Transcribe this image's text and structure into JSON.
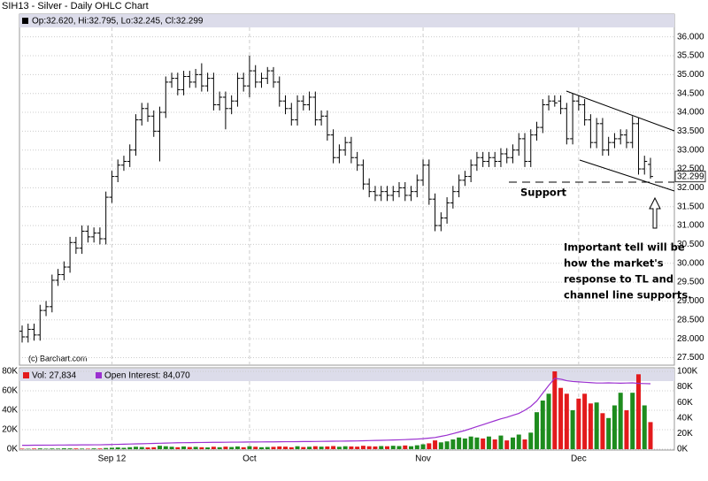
{
  "chart_data": [
    {
      "type": "ohlc",
      "title": "SIH13 - Silver - Daily OHLC Chart",
      "legend_text": "Op:32.620, Hi:32.795, Lo:32.245, Cl:32.299",
      "credit": "(c) Barchart.com",
      "color": "#000000",
      "open": [
        28.2,
        28.05,
        28.25,
        28.1,
        28.75,
        28.85,
        29.55,
        29.7,
        29.9,
        30.55,
        30.4,
        30.85,
        30.7,
        30.8,
        30.65,
        31.75,
        32.3,
        32.6,
        32.7,
        33.0,
        33.8,
        34.1,
        33.9,
        33.5,
        34.0,
        34.8,
        34.9,
        34.6,
        34.95,
        34.8,
        35.0,
        34.7,
        34.9,
        34.2,
        34.4,
        34.1,
        34.3,
        34.9,
        34.7,
        35.1,
        34.8,
        34.9,
        35.1,
        34.8,
        34.3,
        34.1,
        33.8,
        34.3,
        34.2,
        34.4,
        33.8,
        33.9,
        33.4,
        32.8,
        33.0,
        33.2,
        32.8,
        32.6,
        32.1,
        31.9,
        31.8,
        31.9,
        31.8,
        31.9,
        32.0,
        31.8,
        31.9,
        32.2,
        32.6,
        31.7,
        31.0,
        31.2,
        31.6,
        31.9,
        32.2,
        32.3,
        32.6,
        32.8,
        32.7,
        32.8,
        32.7,
        32.9,
        32.8,
        33.0,
        33.3,
        32.7,
        33.4,
        33.6,
        34.2,
        34.3,
        34.3,
        34.1,
        33.3,
        34.3,
        34.2,
        33.8,
        33.2,
        33.7,
        33.0,
        33.2,
        33.3,
        33.4,
        33.2,
        33.7,
        32.5,
        32.62
      ],
      "high": [
        28.35,
        28.4,
        28.4,
        28.9,
        29.0,
        29.7,
        29.85,
        30.05,
        30.7,
        30.7,
        31.0,
        31.0,
        30.95,
        30.95,
        31.9,
        32.45,
        32.75,
        32.85,
        33.15,
        33.95,
        34.25,
        34.25,
        34.05,
        34.15,
        34.95,
        35.05,
        35.05,
        35.1,
        35.1,
        35.15,
        35.3,
        35.05,
        35.05,
        34.55,
        34.55,
        34.45,
        35.05,
        35.05,
        35.5,
        35.25,
        35.05,
        35.2,
        35.2,
        34.95,
        34.45,
        34.25,
        34.45,
        34.45,
        34.55,
        34.55,
        34.05,
        34.05,
        33.55,
        33.15,
        33.35,
        33.35,
        32.95,
        32.75,
        32.25,
        32.05,
        32.05,
        32.05,
        32.05,
        32.15,
        32.15,
        32.05,
        32.35,
        32.75,
        32.75,
        31.85,
        31.35,
        31.75,
        32.05,
        32.35,
        32.45,
        32.75,
        32.95,
        32.95,
        32.95,
        32.95,
        33.05,
        33.05,
        33.15,
        33.45,
        33.45,
        33.55,
        33.75,
        34.35,
        34.45,
        34.45,
        34.45,
        34.25,
        34.5,
        34.45,
        34.35,
        33.95,
        33.85,
        33.85,
        33.35,
        33.45,
        33.55,
        33.55,
        33.9,
        33.85,
        32.85,
        32.795
      ],
      "low": [
        27.9,
        27.9,
        27.95,
        27.95,
        28.6,
        28.7,
        29.4,
        29.55,
        29.75,
        30.25,
        30.25,
        30.55,
        30.55,
        30.5,
        30.5,
        31.6,
        32.15,
        32.45,
        32.55,
        32.85,
        33.65,
        33.75,
        33.35,
        32.7,
        33.85,
        34.65,
        34.45,
        34.45,
        34.65,
        34.65,
        34.55,
        34.55,
        34.05,
        34.05,
        33.55,
        33.95,
        34.15,
        34.55,
        34.4,
        34.65,
        34.65,
        34.75,
        34.65,
        34.15,
        33.95,
        33.65,
        33.65,
        34.05,
        34.05,
        33.65,
        33.65,
        33.25,
        32.65,
        32.65,
        32.85,
        32.65,
        32.45,
        31.95,
        31.75,
        31.65,
        31.65,
        31.65,
        31.65,
        31.75,
        31.65,
        31.65,
        31.75,
        32.05,
        31.55,
        30.85,
        30.85,
        31.05,
        31.45,
        31.75,
        32.05,
        32.15,
        32.45,
        32.55,
        32.55,
        32.55,
        32.55,
        32.65,
        32.65,
        32.85,
        32.55,
        32.55,
        33.25,
        33.45,
        34.05,
        34.15,
        33.95,
        33.15,
        33.15,
        34.05,
        33.65,
        33.05,
        33.05,
        32.85,
        32.85,
        33.05,
        33.15,
        33.05,
        33.05,
        32.35,
        32.35,
        32.245
      ],
      "close": [
        28.05,
        28.25,
        28.1,
        28.75,
        28.85,
        29.55,
        29.7,
        29.9,
        30.55,
        30.4,
        30.85,
        30.7,
        30.8,
        30.65,
        31.75,
        32.3,
        32.6,
        32.7,
        33.0,
        33.8,
        34.1,
        33.9,
        33.5,
        34.0,
        34.8,
        34.9,
        34.6,
        34.95,
        34.8,
        35.0,
        34.7,
        34.9,
        34.2,
        34.4,
        34.1,
        34.3,
        34.9,
        34.7,
        35.1,
        34.8,
        34.9,
        35.1,
        34.8,
        34.3,
        34.1,
        33.8,
        34.3,
        34.2,
        34.4,
        33.8,
        33.9,
        33.4,
        32.8,
        33.0,
        33.2,
        32.8,
        32.6,
        32.1,
        31.9,
        31.8,
        31.9,
        31.8,
        31.9,
        32.0,
        31.8,
        31.9,
        32.2,
        32.6,
        31.7,
        31.0,
        31.2,
        31.6,
        31.9,
        32.2,
        32.3,
        32.6,
        32.8,
        32.7,
        32.8,
        32.7,
        32.9,
        32.8,
        33.0,
        33.3,
        32.7,
        33.4,
        33.6,
        34.2,
        34.3,
        34.25,
        34.1,
        33.3,
        34.3,
        34.2,
        33.8,
        33.2,
        33.7,
        33.0,
        33.2,
        33.3,
        33.4,
        33.2,
        33.7,
        32.5,
        32.7,
        32.299
      ],
      "last_price": 32.299,
      "ylim": [
        27.3,
        36.25
      ],
      "yticks": [
        {
          "value": 27.5,
          "label": "27.500"
        },
        {
          "value": 28,
          "label": "28.000"
        },
        {
          "value": 28.5,
          "label": "28.500"
        },
        {
          "value": 29,
          "label": "29.000"
        },
        {
          "value": 29.5,
          "label": "29.500"
        },
        {
          "value": 30,
          "label": "30.000"
        },
        {
          "value": 30.5,
          "label": "30.500"
        },
        {
          "value": 31,
          "label": "31.000"
        },
        {
          "value": 31.5,
          "label": "31.500"
        },
        {
          "value": 32,
          "label": "32.000"
        },
        {
          "value": 32.5,
          "label": "32.500"
        },
        {
          "value": 33,
          "label": "33.000"
        },
        {
          "value": 33.5,
          "label": "33.500"
        },
        {
          "value": 34,
          "label": "34.000"
        },
        {
          "value": 34.5,
          "label": "34.500"
        },
        {
          "value": 35,
          "label": "35.000"
        },
        {
          "value": 35.5,
          "label": "35.500"
        },
        {
          "value": 36,
          "label": "36.000"
        }
      ],
      "grid": true,
      "annotations": {
        "support": "Support",
        "note": [
          "Important tell will be",
          "how the market's",
          "response to TL and",
          "channel line supports."
        ]
      }
    },
    {
      "type": "bar",
      "categories": [
        null,
        null,
        null,
        null,
        null,
        null,
        null,
        null,
        null,
        null,
        null,
        null,
        null,
        null,
        null,
        "Sep 12",
        null,
        null,
        null,
        null,
        null,
        null,
        null,
        null,
        null,
        null,
        null,
        null,
        null,
        null,
        null,
        null,
        null,
        null,
        null,
        null,
        null,
        null,
        "Oct",
        null,
        null,
        null,
        null,
        null,
        null,
        null,
        null,
        null,
        null,
        null,
        null,
        null,
        null,
        null,
        null,
        null,
        null,
        null,
        null,
        null,
        null,
        null,
        null,
        null,
        null,
        null,
        null,
        "Nov",
        null,
        null,
        null,
        null,
        null,
        null,
        null,
        null,
        null,
        null,
        null,
        null,
        null,
        null,
        null,
        null,
        null,
        null,
        null,
        null,
        null,
        null,
        null,
        null,
        null,
        "Dec",
        null,
        null,
        null,
        null,
        null,
        null,
        null,
        null,
        null,
        null,
        null,
        null
      ],
      "series": [
        {
          "name": "Vol: 27,834",
          "color": "#e31a1c",
          "up_color": "#1e8c1e",
          "values": [
            500,
            400,
            600,
            800,
            500,
            700,
            600,
            900,
            800,
            700,
            600,
            500,
            800,
            700,
            1200,
            1500,
            1800,
            1400,
            2000,
            2500,
            2200,
            1800,
            2000,
            3500,
            3000,
            2500,
            2000,
            2800,
            2200,
            2400,
            2000,
            1800,
            2500,
            2000,
            2600,
            2200,
            2800,
            2000,
            3000,
            2500,
            2000,
            2200,
            2400,
            2800,
            2600,
            2000,
            3000,
            2200,
            2500,
            3000,
            2600,
            2800,
            3200,
            2500,
            3000,
            2800,
            2600,
            3500,
            3000,
            2800,
            3200,
            3000,
            3500,
            3200,
            3800,
            3000,
            4000,
            5000,
            6000,
            9000,
            7000,
            8000,
            10000,
            12000,
            11000,
            13000,
            12000,
            11000,
            13000,
            10000,
            14000,
            9000,
            12000,
            15000,
            10000,
            17000,
            38000,
            50000,
            57000,
            80000,
            63000,
            57000,
            40000,
            52000,
            57000,
            47000,
            48000,
            37000,
            32000,
            45000,
            58000,
            40000,
            58000,
            77000,
            45000,
            27834
          ]
        },
        {
          "name": "Open Interest: 84,070",
          "color": "#9b30d0",
          "axis": "y2",
          "values": [
            5000,
            5000,
            5100,
            5100,
            5200,
            5200,
            5300,
            5300,
            5400,
            5400,
            5500,
            5500,
            5600,
            5600,
            5800,
            6000,
            6200,
            6400,
            6600,
            6800,
            7000,
            7200,
            7400,
            7600,
            7800,
            8000,
            8200,
            8300,
            8400,
            8500,
            8600,
            8700,
            8800,
            8800,
            8900,
            9000,
            9000,
            9100,
            9200,
            9200,
            9300,
            9400,
            9400,
            9500,
            9600,
            9600,
            9700,
            9800,
            9800,
            9900,
            10000,
            10100,
            10200,
            10300,
            10400,
            10500,
            10600,
            10800,
            11000,
            11200,
            11400,
            11600,
            11800,
            12000,
            12300,
            12600,
            13000,
            13500,
            14200,
            15000,
            16500,
            18000,
            20000,
            22000,
            24000,
            26500,
            29000,
            31500,
            34000,
            36500,
            39000,
            41000,
            43500,
            46000,
            50000,
            55000,
            62000,
            72000,
            82000,
            91000,
            90000,
            88000,
            87000,
            86500,
            86000,
            85500,
            85000,
            85000,
            85200,
            85000,
            84800,
            85000,
            85200,
            84500,
            84300,
            84070
          ]
        }
      ],
      "ylim": [
        0,
        80000
      ],
      "yticks": [
        {
          "value": 0,
          "label": "0K"
        },
        {
          "value": 20000,
          "label": "20K"
        },
        {
          "value": 40000,
          "label": "40K"
        },
        {
          "value": 60000,
          "label": "60K"
        },
        {
          "value": 80000,
          "label": "80K"
        }
      ],
      "y2lim": [
        0,
        100000
      ],
      "y2ticks": [
        {
          "value": 0,
          "label": "0K"
        },
        {
          "value": 20000,
          "label": "20K"
        },
        {
          "value": 40000,
          "label": "40K"
        },
        {
          "value": 60000,
          "label": "60K"
        },
        {
          "value": 80000,
          "label": "80K"
        },
        {
          "value": 100000,
          "label": "100K"
        }
      ],
      "grid": true
    }
  ]
}
